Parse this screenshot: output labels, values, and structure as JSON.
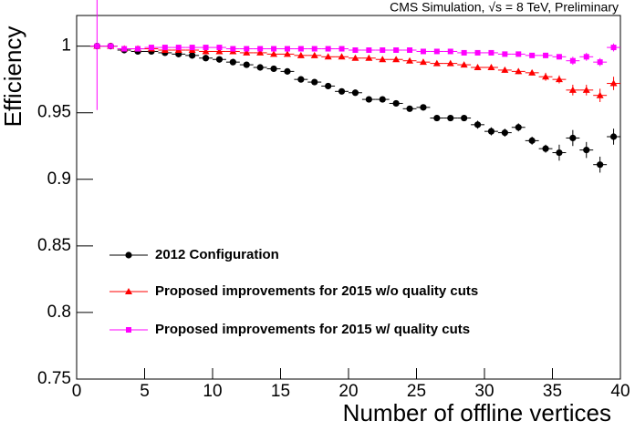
{
  "chart_data": {
    "type": "scatter",
    "title": "CMS Simulation, √s = 8 TeV, Preliminary",
    "x_label": "Number of offline vertices",
    "y_label": "Efficiency",
    "x": [
      1.5,
      2.5,
      3.5,
      4.5,
      5.5,
      6.5,
      7.5,
      8.5,
      9.5,
      10.5,
      11.5,
      12.5,
      13.5,
      14.5,
      15.5,
      16.5,
      17.5,
      18.5,
      19.5,
      20.5,
      21.5,
      22.5,
      23.5,
      24.5,
      25.5,
      26.5,
      27.5,
      28.5,
      29.5,
      30.5,
      31.5,
      32.5,
      33.5,
      34.5,
      35.5,
      36.5,
      37.5,
      38.5,
      39.5
    ],
    "xerr": 0.5,
    "series": [
      {
        "name": "2012 Configuration",
        "color": "#000000",
        "marker": "circle",
        "values": [
          1.0,
          1.0,
          0.997,
          0.996,
          0.996,
          0.995,
          0.994,
          0.993,
          0.991,
          0.99,
          0.988,
          0.986,
          0.984,
          0.983,
          0.981,
          0.975,
          0.973,
          0.97,
          0.966,
          0.965,
          0.96,
          0.96,
          0.957,
          0.953,
          0.954,
          0.946,
          0.946,
          0.946,
          0.941,
          0.936,
          0.935,
          0.939,
          0.929,
          0.923,
          0.92,
          0.931,
          0.922,
          0.911,
          0.932
        ],
        "errors": [
          0.001,
          0.001,
          0.001,
          0.001,
          0.001,
          0.001,
          0.001,
          0.001,
          0.001,
          0.001,
          0.0015,
          0.0015,
          0.0015,
          0.0015,
          0.0015,
          0.0015,
          0.0015,
          0.0015,
          0.0015,
          0.0015,
          0.002,
          0.002,
          0.002,
          0.002,
          0.002,
          0.002,
          0.002,
          0.002,
          0.003,
          0.003,
          0.003,
          0.003,
          0.003,
          0.003,
          0.006,
          0.006,
          0.006,
          0.006,
          0.006
        ]
      },
      {
        "name": "Proposed improvements for 2015 w/o quality cuts",
        "color": "#ff0000",
        "marker": "triangle",
        "values": [
          1.0,
          1.0,
          0.998,
          0.998,
          0.998,
          0.997,
          0.997,
          0.997,
          0.996,
          0.996,
          0.996,
          0.995,
          0.995,
          0.994,
          0.994,
          0.993,
          0.993,
          0.992,
          0.992,
          0.991,
          0.991,
          0.99,
          0.99,
          0.989,
          0.988,
          0.987,
          0.987,
          0.986,
          0.984,
          0.984,
          0.982,
          0.981,
          0.98,
          0.977,
          0.975,
          0.967,
          0.967,
          0.963,
          0.972
        ],
        "errors": [
          0.001,
          0.001,
          0.001,
          0.001,
          0.001,
          0.001,
          0.001,
          0.001,
          0.001,
          0.001,
          0.001,
          0.001,
          0.001,
          0.001,
          0.001,
          0.001,
          0.001,
          0.001,
          0.001,
          0.001,
          0.001,
          0.001,
          0.001,
          0.001,
          0.001,
          0.0015,
          0.0015,
          0.0015,
          0.0015,
          0.002,
          0.002,
          0.002,
          0.002,
          0.003,
          0.003,
          0.004,
          0.004,
          0.005,
          0.005
        ]
      },
      {
        "name": "Proposed improvements for 2015 w/ quality cuts",
        "color": "#ff00ff",
        "marker": "square",
        "values": [
          1.0,
          1.0,
          0.998,
          0.998,
          0.999,
          0.999,
          0.999,
          0.999,
          0.999,
          0.999,
          0.998,
          0.998,
          0.998,
          0.998,
          0.998,
          0.998,
          0.998,
          0.998,
          0.998,
          0.997,
          0.997,
          0.997,
          0.997,
          0.997,
          0.996,
          0.996,
          0.996,
          0.995,
          0.995,
          0.995,
          0.994,
          0.994,
          0.993,
          0.993,
          0.992,
          0.989,
          0.992,
          0.988,
          0.999
        ],
        "errors": [
          0.048,
          0.001,
          0.001,
          0.001,
          0.001,
          0.001,
          0.001,
          0.001,
          0.001,
          0.001,
          0.001,
          0.001,
          0.001,
          0.001,
          0.001,
          0.001,
          0.001,
          0.001,
          0.001,
          0.001,
          0.001,
          0.001,
          0.001,
          0.001,
          0.001,
          0.001,
          0.001,
          0.001,
          0.001,
          0.001,
          0.0015,
          0.0015,
          0.0015,
          0.002,
          0.002,
          0.003,
          0.003,
          0.003,
          0.003
        ]
      }
    ],
    "xlim": [
      0,
      40
    ],
    "ylim": [
      0.75,
      1.023
    ],
    "xticks": [
      0,
      5,
      10,
      15,
      20,
      25,
      30,
      35,
      40
    ],
    "yticks": [
      0.75,
      0.8,
      0.85,
      0.9,
      0.95,
      1
    ],
    "legend": "lower left",
    "grid": false
  }
}
